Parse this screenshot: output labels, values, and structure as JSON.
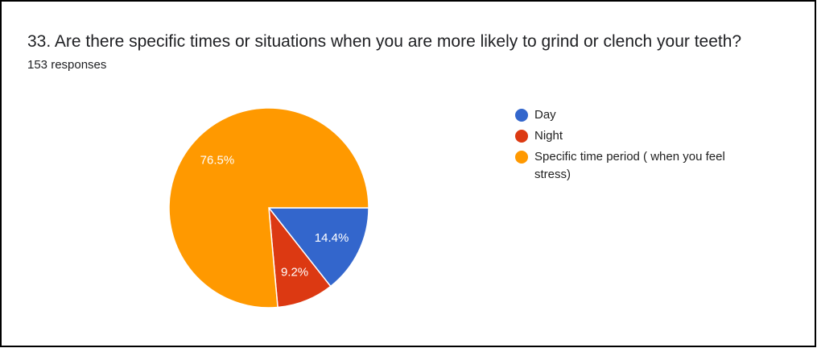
{
  "chart_data": {
    "type": "pie",
    "title": "33. Are there specific times or situations when you are more likely to grind or clench your teeth?",
    "subtitle": "153 responses",
    "categories": [
      "Day",
      "Night",
      "Specific time period ( when you feel stress)"
    ],
    "values": [
      14.4,
      9.2,
      76.5
    ],
    "value_labels": [
      "14.4%",
      "9.2%",
      "76.5%"
    ],
    "colors": [
      "#3366cc",
      "#dc3912",
      "#ff9900"
    ],
    "legend": "right"
  }
}
